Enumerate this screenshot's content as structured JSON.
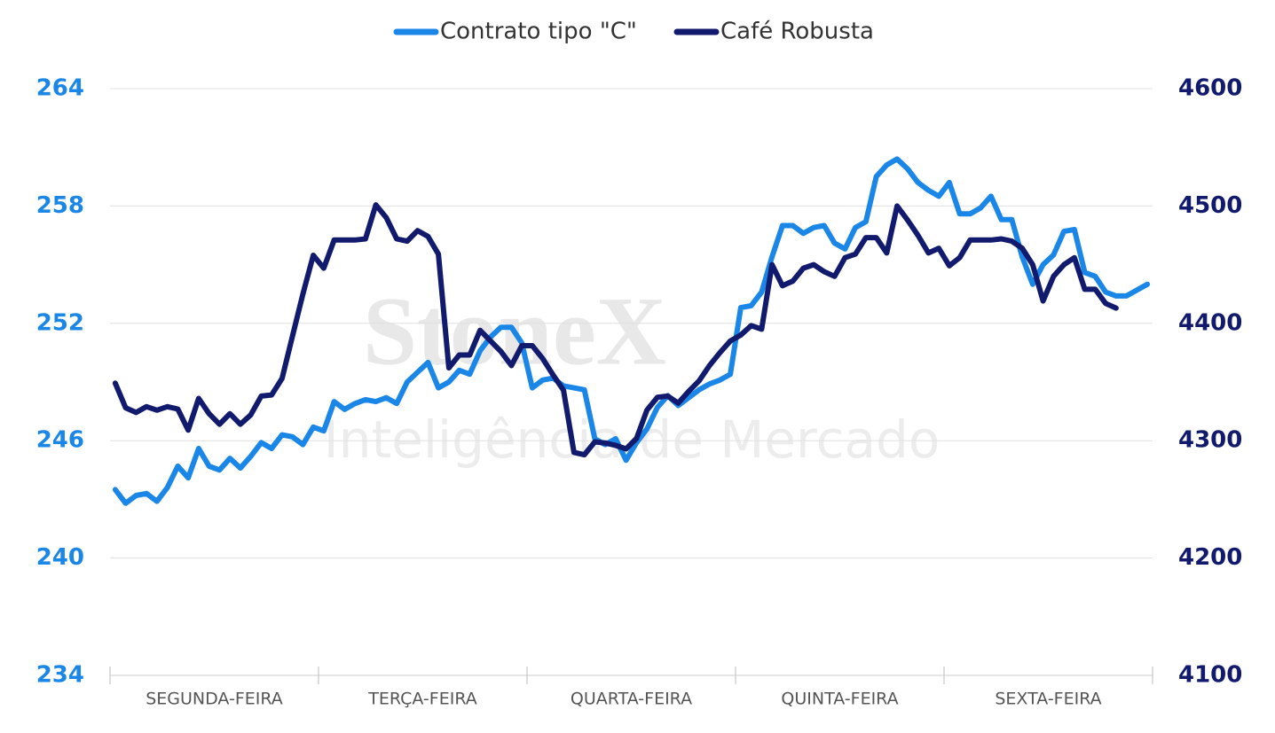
{
  "chart_data": {
    "type": "line",
    "watermark": {
      "brand": "StoneX",
      "tagline": "Inteligência de Mercado"
    },
    "categories": [
      null,
      null,
      null,
      null,
      null,
      null,
      null,
      null,
      null,
      null,
      "SEGUNDA-FEIRA",
      null,
      null,
      null,
      null,
      null,
      null,
      null,
      null,
      null,
      null,
      null,
      null,
      null,
      null,
      null,
      null,
      null,
      null,
      null,
      "TERÇA-FEIRA",
      null,
      null,
      null,
      null,
      null,
      null,
      null,
      null,
      null,
      null,
      null,
      null,
      null,
      null,
      null,
      null,
      null,
      null,
      null,
      "QUARTA-FEIRA",
      null,
      null,
      null,
      null,
      null,
      null,
      null,
      null,
      null,
      null,
      null,
      null,
      null,
      null,
      null,
      null,
      null,
      null,
      null,
      "QUINTA-FEIRA",
      null,
      null,
      null,
      null,
      null,
      null,
      null,
      null,
      null,
      null,
      null,
      null,
      null,
      null,
      null,
      null,
      null,
      null,
      null,
      "SEXTA-FEIRA",
      null,
      null,
      null,
      null,
      null,
      null,
      null,
      null,
      null
    ],
    "series": [
      {
        "name": "Contrato tipo \"C\"",
        "color": "#1a87e8",
        "axis": "y",
        "values": [
          243.5,
          242.8,
          243.2,
          243.3,
          242.9,
          243.6,
          244.7,
          244.1,
          245.6,
          244.7,
          244.5,
          245.1,
          244.6,
          245.2,
          245.9,
          245.6,
          246.3,
          246.2,
          245.8,
          246.7,
          246.5,
          248.0,
          247.6,
          247.9,
          248.1,
          248.0,
          248.2,
          247.9,
          249.0,
          249.5,
          250.0,
          248.7,
          249.0,
          249.6,
          249.4,
          250.6,
          251.3,
          251.8,
          251.8,
          251.0,
          248.7,
          249.1,
          249.2,
          248.8,
          248.7,
          248.6,
          246.1,
          245.8,
          246.1,
          245.0,
          245.9,
          246.6,
          247.7,
          248.3,
          247.8,
          248.2,
          248.6,
          248.9,
          249.1,
          249.4,
          252.8,
          252.9,
          253.6,
          255.4,
          257.0,
          257.0,
          256.6,
          256.9,
          257.0,
          256.1,
          255.8,
          256.9,
          257.2,
          259.5,
          260.1,
          260.4,
          259.9,
          259.2,
          258.8,
          258.5,
          259.2,
          257.6,
          257.6,
          257.9,
          258.5,
          257.3,
          257.3,
          255.4,
          254.0,
          255.0,
          255.5,
          256.7,
          256.8,
          254.6,
          254.4,
          253.6,
          253.4,
          253.4,
          253.7,
          254.0
        ]
      },
      {
        "name": "Café Robusta",
        "color": "#121a6e",
        "axis": "y2",
        "values": [
          4349,
          4328,
          4324,
          4329,
          4326,
          4329,
          4327,
          4309,
          4336,
          4323,
          4314,
          4323,
          4314,
          4322,
          4338,
          4339,
          4353,
          4389,
          4425,
          4458,
          4447,
          4471,
          4471,
          4471,
          4472,
          4501,
          4490,
          4472,
          4470,
          4479,
          4474,
          4459,
          4362,
          4373,
          4373,
          4394,
          4385,
          4376,
          4364,
          4381,
          4381,
          4370,
          4356,
          4343,
          4290,
          4288,
          4299,
          4298,
          4296,
          4293,
          4302,
          4326,
          4337,
          4338,
          4332,
          4342,
          4351,
          4364,
          4375,
          4385,
          4390,
          4398,
          4395,
          4450,
          4432,
          4436,
          4447,
          4450,
          4444,
          4440,
          4456,
          4459,
          4473,
          4473,
          4460,
          4500,
          4488,
          4475,
          4460,
          4464,
          4449,
          4456,
          4471,
          4471,
          4471,
          4472,
          4470,
          4464,
          4450,
          4419,
          4440,
          4450,
          4456,
          4429,
          4429,
          4417,
          4413,
          null,
          null,
          null
        ]
      }
    ],
    "ylim": [
      234,
      264
    ],
    "yticks": [
      234,
      240,
      246,
      252,
      258,
      264
    ],
    "y2lim": [
      4100,
      4600
    ],
    "y2ticks": [
      4100,
      4200,
      4300,
      4400,
      4500,
      4600
    ],
    "grid": true,
    "legend": "top"
  }
}
